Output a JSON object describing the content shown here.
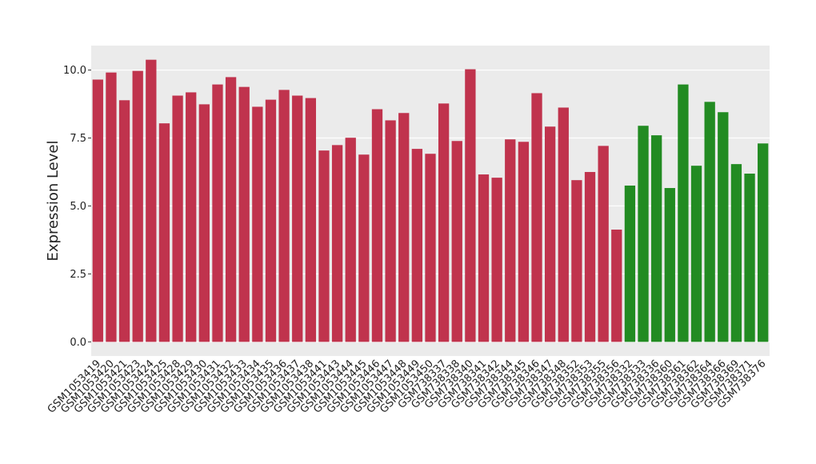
{
  "chart_data": {
    "type": "bar",
    "y_label": "Expression Level",
    "categories": [
      "GSM1053419",
      "GSM1053420",
      "GSM1053421",
      "GSM1053423",
      "GSM1053424",
      "GSM1053425",
      "GSM1053428",
      "GSM1053429",
      "GSM1053430",
      "GSM1053431",
      "GSM1053432",
      "GSM1053433",
      "GSM1053434",
      "GSM1053435",
      "GSM1053436",
      "GSM1053437",
      "GSM1053438",
      "GSM1053441",
      "GSM1053443",
      "GSM1053444",
      "GSM1053445",
      "GSM1053446",
      "GSM1053447",
      "GSM1053448",
      "GSM1053449",
      "GSM1053450",
      "GSM738337",
      "GSM738338",
      "GSM738340",
      "GSM738341",
      "GSM738342",
      "GSM738344",
      "GSM738345",
      "GSM738346",
      "GSM738347",
      "GSM738348",
      "GSM738352",
      "GSM738353",
      "GSM738355",
      "GSM738356",
      "GSM738332",
      "GSM738333",
      "GSM738336",
      "GSM738360",
      "GSM738361",
      "GSM738362",
      "GSM738364",
      "GSM738366",
      "GSM738369",
      "GSM738371",
      "GSM738376"
    ],
    "values": [
      9.65,
      9.91,
      8.89,
      9.97,
      10.38,
      8.04,
      9.06,
      9.18,
      8.74,
      9.47,
      9.74,
      9.38,
      8.65,
      8.91,
      9.27,
      9.06,
      8.97,
      7.04,
      7.24,
      7.51,
      6.89,
      8.56,
      8.15,
      8.42,
      7.1,
      6.92,
      8.77,
      7.39,
      10.03,
      6.16,
      6.04,
      7.45,
      7.36,
      9.15,
      7.92,
      8.62,
      5.95,
      6.25,
      7.21,
      4.13,
      5.75,
      7.95,
      7.6,
      5.66,
      9.47,
      6.48,
      8.83,
      8.45,
      6.54,
      6.19,
      7.3
    ],
    "colors": [
      "#c0334d",
      "#c0334d",
      "#c0334d",
      "#c0334d",
      "#c0334d",
      "#c0334d",
      "#c0334d",
      "#c0334d",
      "#c0334d",
      "#c0334d",
      "#c0334d",
      "#c0334d",
      "#c0334d",
      "#c0334d",
      "#c0334d",
      "#c0334d",
      "#c0334d",
      "#c0334d",
      "#c0334d",
      "#c0334d",
      "#c0334d",
      "#c0334d",
      "#c0334d",
      "#c0334d",
      "#c0334d",
      "#c0334d",
      "#c0334d",
      "#c0334d",
      "#c0334d",
      "#c0334d",
      "#c0334d",
      "#c0334d",
      "#c0334d",
      "#c0334d",
      "#c0334d",
      "#c0334d",
      "#c0334d",
      "#c0334d",
      "#c0334d",
      "#c0334d",
      "#228b22",
      "#228b22",
      "#228b22",
      "#228b22",
      "#228b22",
      "#228b22",
      "#228b22",
      "#228b22",
      "#228b22",
      "#228b22",
      "#228b22"
    ],
    "ylim": [
      -0.52,
      10.9
    ],
    "yticks": [
      {
        "value": 0,
        "label": "0.0"
      },
      2.5,
      {
        "value": 5,
        "label": "5.0"
      },
      7.5,
      {
        "value": 10,
        "label": "10.0"
      }
    ],
    "grid": true
  }
}
